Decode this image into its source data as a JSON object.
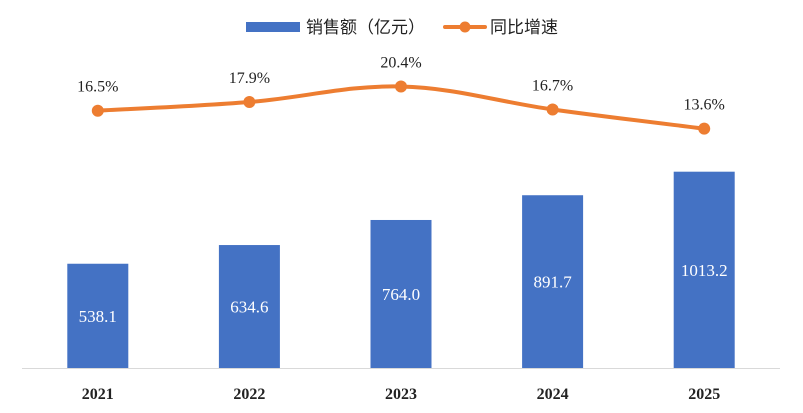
{
  "chart_data": {
    "type": "bar",
    "categories": [
      "2021",
      "2022",
      "2023",
      "2024",
      "2025"
    ],
    "series": [
      {
        "name": "销售额（亿元）",
        "type": "bar",
        "values": [
          538.1,
          634.6,
          764.0,
          891.7,
          1013.2
        ],
        "labels": [
          "538.1",
          "634.6",
          "764.0",
          "891.7",
          "1013.2"
        ],
        "color": "#4472C4"
      },
      {
        "name": "同比增速",
        "type": "line",
        "values": [
          16.5,
          17.9,
          20.4,
          16.7,
          13.6
        ],
        "labels": [
          "16.5%",
          "17.9%",
          "20.4%",
          "16.7%",
          "13.6%"
        ],
        "color": "#ED7D31",
        "smooth": true,
        "axis": "secondary"
      }
    ],
    "ylim": [
      0,
      1600
    ],
    "y2lim": [
      -25,
      25
    ],
    "legend": "top-center",
    "grid": false
  }
}
